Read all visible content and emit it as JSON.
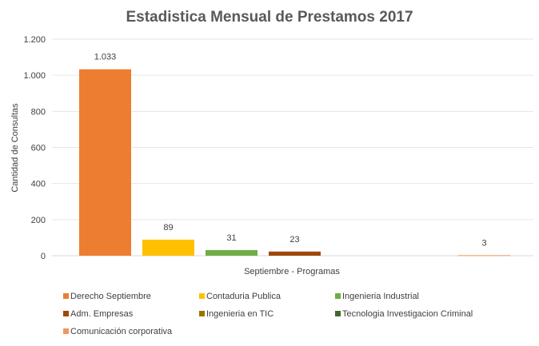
{
  "chart_data": {
    "type": "bar",
    "title": "Estadistica Mensual de Prestamos 2017",
    "xlabel": "Septiembre - Programas",
    "ylabel": "Cantidad de Consultas",
    "ylim": [
      0,
      1200
    ],
    "yticks": [
      0,
      200,
      400,
      600,
      800,
      1000,
      1200
    ],
    "ytick_labels": [
      "0",
      "200",
      "400",
      "600",
      "800",
      "1.000",
      "1.200"
    ],
    "grid": true,
    "legend_position": "bottom",
    "categories": [
      "Septiembre - Programas"
    ],
    "series": [
      {
        "name": "Derecho Septiembre",
        "values": [
          1033
        ],
        "label": "1.033",
        "color": "#ED7D31"
      },
      {
        "name": "Contaduria Publica",
        "values": [
          89
        ],
        "label": "89",
        "color": "#FFC000"
      },
      {
        "name": "Ingenieria Industrial",
        "values": [
          31
        ],
        "label": "31",
        "color": "#70AD47"
      },
      {
        "name": "Adm. Empresas",
        "values": [
          23
        ],
        "label": "23",
        "color": "#9E480E"
      },
      {
        "name": "Ingenieria en TIC",
        "values": [
          0
        ],
        "label": "",
        "color": "#997300"
      },
      {
        "name": "Tecnologia Investigacion Criminal",
        "values": [
          0
        ],
        "label": "",
        "color": "#43682B"
      },
      {
        "name": "Comunicación corporativa",
        "values": [
          3
        ],
        "label": "3",
        "color": "#F1975A"
      }
    ]
  }
}
